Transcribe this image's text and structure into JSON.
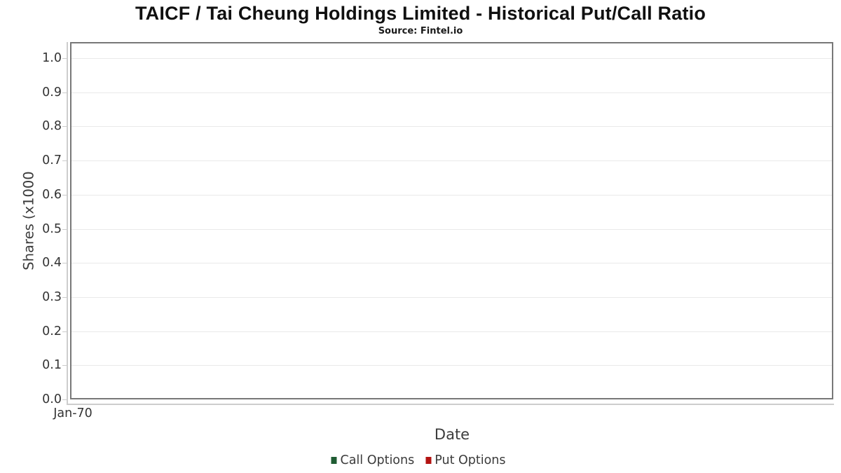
{
  "chart_data": {
    "type": "line",
    "title": "TAICF / Tai Cheung Holdings Limited - Historical Put/Call Ratio",
    "subtitle": "Source: Fintel.io",
    "xlabel": "Date",
    "ylabel": "Shares (x1000",
    "x_ticks": [
      "Jan-70"
    ],
    "y_ticks": [
      "1.0",
      "0.9",
      "0.8",
      "0.7",
      "0.6",
      "0.5",
      "0.4",
      "0.3",
      "0.2",
      "0.1",
      "0.0"
    ],
    "ylim": [
      0.0,
      1.05
    ],
    "grid": true,
    "legend_position": "bottom",
    "series": [
      {
        "name": "Call Options",
        "color": "#1f5c33",
        "values": []
      },
      {
        "name": "Put Options",
        "color": "#b31312",
        "values": []
      }
    ]
  },
  "colors": {
    "plot_border": "#787878",
    "gridline": "#e9e9e9",
    "axis_line": "#cdcdcd",
    "tick_text": "#333333",
    "label_text": "#3c3c3c",
    "title_text": "#101010"
  }
}
